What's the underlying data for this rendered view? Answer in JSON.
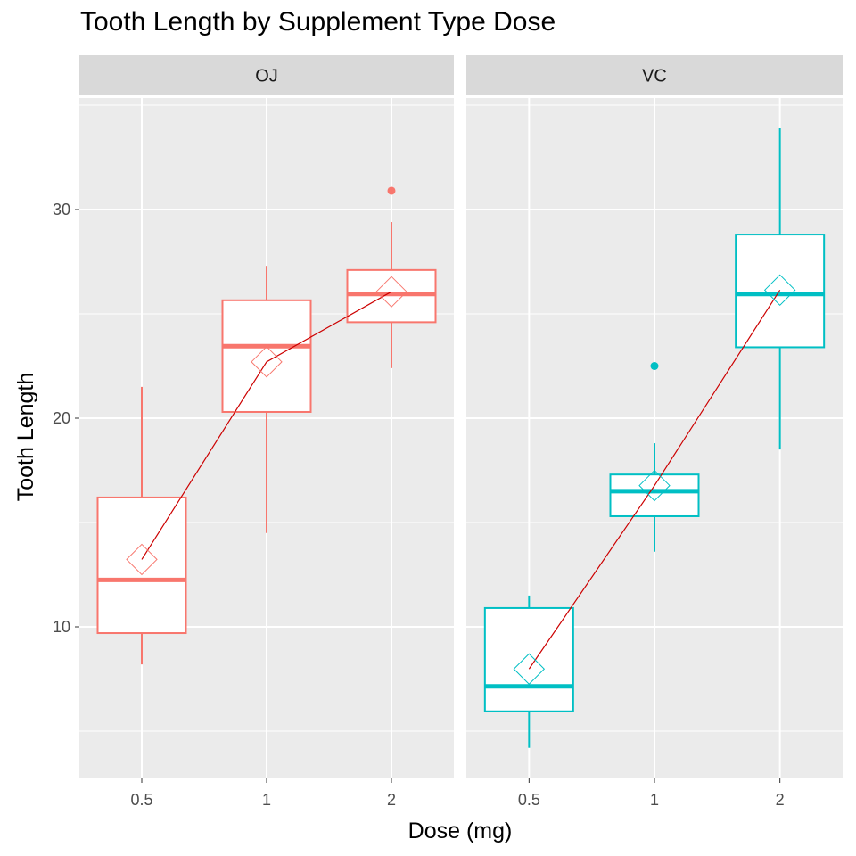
{
  "chart_data": {
    "type": "boxplot",
    "title": "Tooth Length by Supplement Type Dose",
    "xlabel": "Dose (mg)",
    "ylabel": "Tooth Length",
    "categories": [
      "0.5",
      "1",
      "2"
    ],
    "yticks": [
      10,
      20,
      30
    ],
    "ylim": [
      3,
      36
    ],
    "grid": true,
    "panels": [
      {
        "label": "OJ",
        "color": "#F8766D",
        "boxes": [
          {
            "dose": "0.5",
            "min": 8.2,
            "q1": 9.7,
            "median": 12.25,
            "q3": 16.2,
            "max": 21.5,
            "mean": 13.23,
            "outliers": []
          },
          {
            "dose": "1",
            "min": 14.5,
            "q1": 20.3,
            "median": 23.45,
            "q3": 25.65,
            "max": 27.3,
            "mean": 22.7,
            "outliers": []
          },
          {
            "dose": "2",
            "min": 22.4,
            "q1": 24.6,
            "median": 25.95,
            "q3": 27.1,
            "max": 29.4,
            "mean": 26.06,
            "outliers": [
              30.9
            ]
          }
        ]
      },
      {
        "label": "VC",
        "color": "#00BFC4",
        "boxes": [
          {
            "dose": "0.5",
            "min": 4.2,
            "q1": 5.95,
            "median": 7.15,
            "q3": 10.9,
            "max": 11.5,
            "mean": 7.98,
            "outliers": []
          },
          {
            "dose": "1",
            "min": 13.6,
            "q1": 15.3,
            "median": 16.5,
            "q3": 17.3,
            "max": 18.8,
            "mean": 16.77,
            "outliers": [
              22.5
            ]
          },
          {
            "dose": "2",
            "min": 18.5,
            "q1": 23.4,
            "median": 25.95,
            "q3": 28.8,
            "max": 33.9,
            "mean": 26.14,
            "outliers": []
          }
        ]
      }
    ],
    "mean_line_color": "#CC0000"
  }
}
